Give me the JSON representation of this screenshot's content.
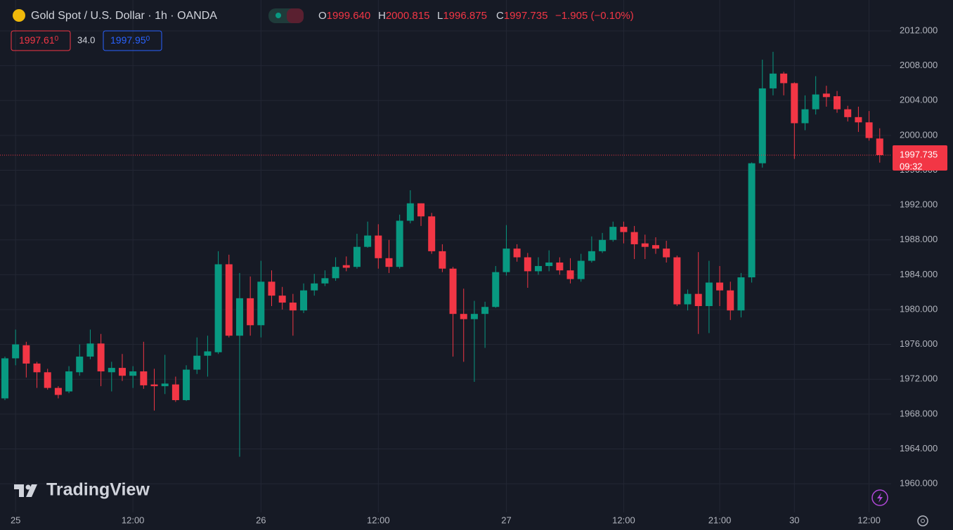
{
  "header": {
    "title": "Gold Spot / U.S. Dollar · 1h · OANDA",
    "ohlc": [
      {
        "label": "O",
        "value": "1999.640"
      },
      {
        "label": "H",
        "value": "2000.815"
      },
      {
        "label": "L",
        "value": "1996.875"
      },
      {
        "label": "C",
        "value": "1997.735"
      }
    ],
    "change": "−1.905 (−0.10%)"
  },
  "quote": {
    "bid": "1997.61",
    "bid_small": "0",
    "spread": "34.0",
    "ask": "1997.95",
    "ask_small": "0"
  },
  "countdown": "09:32",
  "watermark": "TradingView",
  "chart_data": {
    "type": "candlestick",
    "categories": [
      null,
      "25",
      null,
      null,
      null,
      null,
      null,
      null,
      null,
      null,
      null,
      null,
      "12:00",
      null,
      null,
      null,
      null,
      null,
      null,
      null,
      null,
      null,
      null,
      null,
      "26",
      null,
      null,
      null,
      null,
      null,
      null,
      null,
      null,
      null,
      null,
      "12:00",
      null,
      null,
      null,
      null,
      null,
      null,
      null,
      null,
      null,
      null,
      null,
      "27",
      null,
      null,
      null,
      null,
      null,
      null,
      null,
      null,
      null,
      null,
      "12:00",
      null,
      null,
      null,
      null,
      null,
      null,
      null,
      null,
      "21:00",
      null,
      null,
      null,
      null,
      null,
      null,
      "30",
      null,
      null,
      null,
      null,
      null,
      null,
      "12:00",
      null
    ],
    "open": [
      1969.8,
      1974.4,
      1975.9,
      1973.8,
      1972.8,
      1971.0,
      1970.6,
      1972.8,
      1974.6,
      1976.1,
      1972.8,
      1973.3,
      1972.4,
      1972.9,
      1971.4,
      1971.2,
      1971.4,
      1969.6,
      1973.1,
      1974.7,
      1975.1,
      1985.2,
      1977.0,
      1981.3,
      1978.2,
      1983.2,
      1981.6,
      1980.8,
      1979.9,
      1982.2,
      1983.0,
      1983.6,
      1985.1,
      1984.9,
      1987.2,
      1988.5,
      1985.9,
      1984.9,
      1990.2,
      1992.2,
      1990.7,
      1986.7,
      1984.7,
      1979.5,
      1978.9,
      1979.5,
      1980.3,
      1984.3,
      1987.0,
      1986.0,
      1984.4,
      1985.0,
      1985.4,
      1984.5,
      1983.5,
      1985.6,
      1986.7,
      1988.0,
      1989.5,
      1988.9,
      1987.6,
      1987.4,
      1987.0,
      1986.0,
      1980.6,
      1981.8,
      1980.4,
      1983.1,
      1982.2,
      1979.9,
      1983.7,
      1996.8,
      2005.4,
      2007.1,
      2006.0,
      2001.4,
      2003.0,
      2004.8,
      2004.5,
      2003.0,
      2002.1,
      2001.5,
      1999.64
    ],
    "high": [
      1974.6,
      1977.7,
      1976.3,
      1974.0,
      1973.2,
      1971.2,
      1973.5,
      1976.0,
      1977.7,
      1977.2,
      1974.0,
      1974.9,
      1973.5,
      1976.3,
      1973.2,
      1974.8,
      1972.3,
      1973.6,
      1976.8,
      1977.0,
      1986.7,
      1986.3,
      1984.2,
      1983.8,
      1985.6,
      1984.5,
      1982.6,
      1981.8,
      1983.0,
      1984.1,
      1984.5,
      1986.0,
      1986.1,
      1988.7,
      1990.1,
      1989.8,
      1988.0,
      1990.9,
      1993.7,
      1992.2,
      1991.1,
      1987.5,
      1984.9,
      1982.4,
      1981.0,
      1980.9,
      1985.0,
      1989.7,
      1987.5,
      1986.5,
      1986.0,
      1986.8,
      1986.0,
      1985.9,
      1986.4,
      1988.4,
      1988.8,
      1990.1,
      1990.1,
      1989.6,
      1988.6,
      1988.3,
      1987.9,
      1986.2,
      1982.3,
      1986.6,
      1985.6,
      1985.0,
      1983.2,
      1984.2,
      1996.9,
      2008.7,
      2009.6,
      2007.3,
      2006.1,
      2004.6,
      2006.8,
      2005.7,
      2005.1,
      2003.4,
      2003.3,
      2002.8,
      2000.815
    ],
    "low": [
      1969.6,
      1973.6,
      1972.2,
      1971.0,
      1970.8,
      1969.8,
      1970.4,
      1972.4,
      1974.3,
      1971.2,
      1970.6,
      1971.8,
      1971.0,
      1970.9,
      1968.4,
      1970.3,
      1969.4,
      1969.5,
      1972.6,
      1972.3,
      1974.9,
      1976.8,
      1963.1,
      1977.0,
      1976.8,
      1980.4,
      1980.0,
      1977.0,
      1979.6,
      1981.6,
      1982.7,
      1983.3,
      1984.4,
      1984.7,
      1987.1,
      1984.7,
      1984.2,
      1984.7,
      1989.9,
      1989.6,
      1986.4,
      1984.3,
      1974.6,
      1974.0,
      1971.7,
      1975.6,
      1980.2,
      1983.9,
      1985.5,
      1982.5,
      1984.0,
      1984.4,
      1984.0,
      1983.0,
      1983.2,
      1985.4,
      1986.5,
      1987.8,
      1987.6,
      1985.8,
      1985.8,
      1986.4,
      1985.4,
      1980.4,
      1979.9,
      1977.2,
      1977.3,
      1980.4,
      1978.8,
      1979.1,
      1983.1,
      1996.3,
      2004.6,
      2004.6,
      1997.3,
      2000.6,
      2002.4,
      2003.3,
      2002.6,
      2001.6,
      2000.4,
      1999.4,
      1996.875
    ],
    "close": [
      1974.4,
      1976.0,
      1973.8,
      1972.8,
      1971.0,
      1970.2,
      1972.9,
      1974.6,
      1976.1,
      1972.9,
      1973.3,
      1972.4,
      1972.9,
      1971.3,
      1971.2,
      1971.5,
      1969.6,
      1973.1,
      1974.7,
      1975.2,
      1985.2,
      1977.0,
      1981.3,
      1978.2,
      1983.2,
      1981.6,
      1980.8,
      1979.9,
      1982.2,
      1983.0,
      1983.6,
      1984.9,
      1984.8,
      1987.2,
      1988.5,
      1985.9,
      1984.9,
      1990.2,
      1992.2,
      1990.7,
      1986.7,
      1984.7,
      1979.5,
      1978.9,
      1979.5,
      1980.3,
      1984.3,
      1987.0,
      1986.0,
      1984.4,
      1985.0,
      1985.4,
      1984.5,
      1983.5,
      1985.6,
      1986.7,
      1988.0,
      1989.5,
      1988.9,
      1987.5,
      1987.2,
      1987.0,
      1986.0,
      1980.6,
      1981.8,
      1980.4,
      1983.1,
      1982.2,
      1979.9,
      1983.7,
      1996.8,
      2005.4,
      2007.1,
      2006.0,
      2001.4,
      2003.0,
      2004.7,
      2004.4,
      2003.0,
      2002.1,
      2001.5,
      1999.7,
      1997.735
    ],
    "up_color": "#089981",
    "down_color": "#f23645",
    "ylim": [
      1956.7,
      2015.55
    ],
    "yticks": [
      {
        "value": 1960,
        "label": "1960.000"
      },
      {
        "value": 1964,
        "label": "1964.000"
      },
      {
        "value": 1968,
        "label": "1968.000"
      },
      {
        "value": 1972,
        "label": "1972.000"
      },
      {
        "value": 1976,
        "label": "1976.000"
      },
      {
        "value": 1980,
        "label": "1980.000"
      },
      {
        "value": 1984,
        "label": "1984.000"
      },
      {
        "value": 1988,
        "label": "1988.000"
      },
      {
        "value": 1992,
        "label": "1992.000"
      },
      {
        "value": 1996,
        "label": "1996.000"
      },
      {
        "value": 2000,
        "label": "2000.000"
      },
      {
        "value": 2004,
        "label": "2004.000"
      },
      {
        "value": 2008,
        "label": "2008.000"
      },
      {
        "value": 2012,
        "label": "2012.000"
      }
    ],
    "grid": true
  }
}
